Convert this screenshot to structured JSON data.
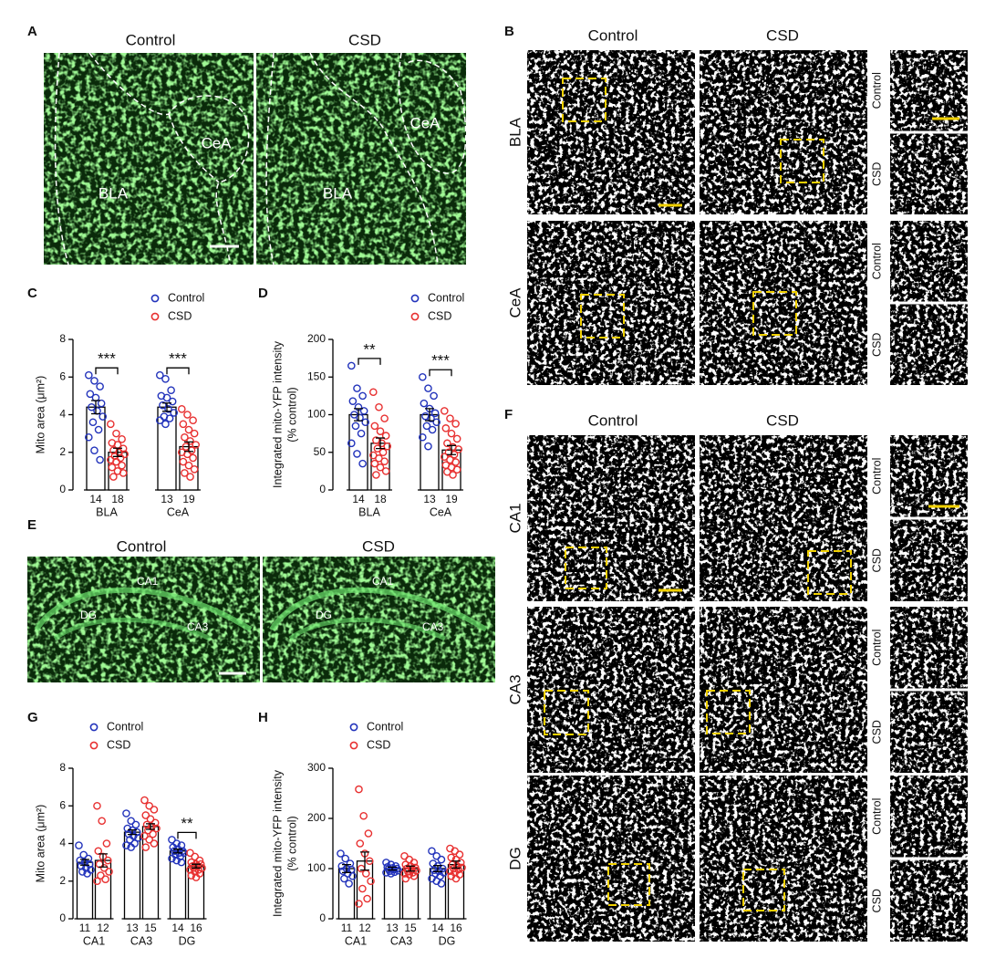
{
  "images": {
    "A": {
      "label": "A",
      "columns": [
        "Control",
        "CSD"
      ],
      "regions": [
        [
          "CeA",
          "BLA"
        ],
        [
          "CeA",
          "BLA"
        ]
      ]
    },
    "B": {
      "label": "B",
      "columns": [
        "Control",
        "CSD"
      ],
      "rows": [
        "BLA",
        "CeA"
      ],
      "insets": [
        "Control",
        "CSD"
      ]
    },
    "E": {
      "label": "E",
      "columns": [
        "Control",
        "CSD"
      ],
      "regions": [
        [
          "CA1",
          "DG",
          "CA3"
        ],
        [
          "CA1",
          "DG",
          "CA3"
        ]
      ]
    },
    "F": {
      "label": "F",
      "columns": [
        "Control",
        "CSD"
      ],
      "rows": [
        "CA1",
        "CA3",
        "DG"
      ],
      "insets": [
        "Control",
        "CSD"
      ]
    }
  },
  "chart_data": [
    {
      "type": "bar",
      "label": "C",
      "y_label": [
        "Mito area (μm²)"
      ],
      "categories": [
        "BLA",
        "CeA"
      ],
      "ylim": [
        0,
        8
      ],
      "yticks": [
        0,
        2,
        4,
        6,
        8
      ],
      "significance": [
        "***",
        "***"
      ],
      "series": [
        {
          "name": "Control",
          "color": "#2233bb",
          "values": [
            4.4,
            4.4
          ],
          "errors": [
            0.35,
            0.22
          ],
          "n": [
            14,
            13
          ],
          "points": [
            [
              6.1,
              5.8,
              5.5,
              5.1,
              4.9,
              4.6,
              4.4,
              4.2,
              3.9,
              3.6,
              3.2,
              2.8,
              2.1,
              1.6
            ],
            [
              6.1,
              5.9,
              5.3,
              5.0,
              4.9,
              4.7,
              4.5,
              4.3,
              4.1,
              3.9,
              3.8,
              3.7,
              3.5
            ]
          ]
        },
        {
          "name": "CSD",
          "color": "#e83030",
          "values": [
            2.0,
            2.3
          ],
          "errors": [
            0.22,
            0.25
          ],
          "n": [
            18,
            19
          ],
          "points": [
            [
              3.5,
              3.0,
              2.7,
              2.5,
              2.4,
              2.2,
              2.1,
              2.0,
              1.9,
              1.8,
              1.7,
              1.6,
              1.5,
              1.3,
              1.2,
              1.0,
              0.9,
              0.7
            ],
            [
              4.3,
              4.0,
              3.7,
              3.5,
              3.2,
              3.0,
              2.8,
              2.6,
              2.4,
              2.3,
              2.1,
              2.0,
              1.9,
              1.7,
              1.5,
              1.3,
              1.1,
              0.9,
              0.7
            ]
          ]
        }
      ]
    },
    {
      "type": "bar",
      "label": "D",
      "y_label": [
        "Integrated mito-YFP intensity",
        "(% control)"
      ],
      "categories": [
        "BLA",
        "CeA"
      ],
      "ylim": [
        0,
        200
      ],
      "yticks": [
        0,
        50,
        100,
        150,
        200
      ],
      "significance": [
        "**",
        "***"
      ],
      "series": [
        {
          "name": "Control",
          "color": "#2233bb",
          "values": [
            100,
            100
          ],
          "errors": [
            8,
            8
          ],
          "n": [
            14,
            13
          ],
          "points": [
            [
              165,
              135,
              125,
              118,
              110,
              105,
              100,
              96,
              90,
              85,
              75,
              62,
              48,
              35
            ],
            [
              150,
              135,
              125,
              115,
              108,
              102,
              98,
              95,
              90,
              85,
              80,
              70,
              58
            ]
          ]
        },
        {
          "name": "CSD",
          "color": "#e83030",
          "values": [
            62,
            53
          ],
          "errors": [
            7,
            6
          ],
          "n": [
            18,
            19
          ],
          "points": [
            [
              130,
              110,
              95,
              85,
              78,
              72,
              66,
              62,
              58,
              55,
              50,
              46,
              42,
              38,
              35,
              30,
              25,
              20
            ],
            [
              105,
              95,
              88,
              82,
              75,
              68,
              62,
              57,
              54,
              50,
              47,
              44,
              40,
              37,
              33,
              30,
              27,
              24,
              20
            ]
          ]
        }
      ]
    },
    {
      "type": "bar",
      "label": "G",
      "y_label": [
        "Mito area (μm²)"
      ],
      "categories": [
        "CA1",
        "CA3",
        "DG"
      ],
      "ylim": [
        0,
        8
      ],
      "yticks": [
        0,
        2,
        4,
        6,
        8
      ],
      "significance": [
        null,
        null,
        "**"
      ],
      "series": [
        {
          "name": "Control",
          "color": "#2233bb",
          "values": [
            3.0,
            4.6,
            3.6
          ],
          "errors": [
            0.15,
            0.12,
            0.1
          ],
          "n": [
            11,
            13,
            14
          ],
          "points": [
            [
              3.9,
              3.4,
              3.2,
              3.1,
              3.0,
              2.9,
              2.8,
              2.7,
              2.6,
              2.5,
              2.4
            ],
            [
              5.6,
              5.2,
              5.0,
              4.8,
              4.7,
              4.6,
              4.5,
              4.4,
              4.3,
              4.2,
              4.0,
              3.9,
              3.8
            ],
            [
              4.2,
              4.0,
              3.9,
              3.8,
              3.7,
              3.6,
              3.6,
              3.5,
              3.5,
              3.4,
              3.3,
              3.2,
              3.1,
              3.0
            ]
          ]
        },
        {
          "name": "CSD",
          "color": "#e83030",
          "values": [
            3.1,
            4.9,
            2.8
          ],
          "errors": [
            0.35,
            0.15,
            0.1
          ],
          "n": [
            12,
            15,
            16
          ],
          "points": [
            [
              6.0,
              5.2,
              4.0,
              3.6,
              3.3,
              3.1,
              2.9,
              2.7,
              2.5,
              2.3,
              2.1,
              2.0
            ],
            [
              6.3,
              6.0,
              5.8,
              5.5,
              5.3,
              5.1,
              5.0,
              4.9,
              4.8,
              4.7,
              4.5,
              4.4,
              4.2,
              4.0,
              3.8
            ],
            [
              3.5,
              3.3,
              3.1,
              3.0,
              2.9,
              2.9,
              2.8,
              2.8,
              2.7,
              2.7,
              2.6,
              2.6,
              2.5,
              2.4,
              2.3,
              2.2
            ]
          ]
        }
      ]
    },
    {
      "type": "bar",
      "label": "H",
      "y_label": [
        "Integrated mito-YFP intensity",
        "(% control)"
      ],
      "categories": [
        "CA1",
        "CA3",
        "DG"
      ],
      "ylim": [
        0,
        300
      ],
      "yticks": [
        0,
        100,
        200,
        300
      ],
      "significance": [
        null,
        null,
        null
      ],
      "series": [
        {
          "name": "Control",
          "color": "#2233bb",
          "values": [
            100,
            100,
            100
          ],
          "errors": [
            8,
            3,
            6
          ],
          "n": [
            11,
            13,
            14
          ],
          "points": [
            [
              130,
              120,
              110,
              105,
              100,
              98,
              95,
              90,
              85,
              80,
              70
            ],
            [
              112,
              108,
              105,
              103,
              101,
              100,
              99,
              98,
              96,
              95,
              93,
              92,
              90
            ],
            [
              135,
              125,
              118,
              110,
              105,
              100,
              97,
              95,
              92,
              90,
              85,
              80,
              75,
              70
            ]
          ]
        },
        {
          "name": "CSD",
          "color": "#e83030",
          "values": [
            115,
            100,
            108
          ],
          "errors": [
            18,
            5,
            7
          ],
          "n": [
            12,
            15,
            16
          ],
          "points": [
            [
              258,
              205,
              170,
              150,
              130,
              115,
              100,
              90,
              75,
              60,
              40,
              30
            ],
            [
              125,
              118,
              112,
              108,
              105,
              102,
              100,
              98,
              96,
              94,
              92,
              90,
              88,
              85,
              80
            ],
            [
              140,
              135,
              128,
              122,
              118,
              112,
              108,
              105,
              102,
              100,
              98,
              95,
              92,
              88,
              85,
              80
            ]
          ]
        }
      ]
    }
  ]
}
